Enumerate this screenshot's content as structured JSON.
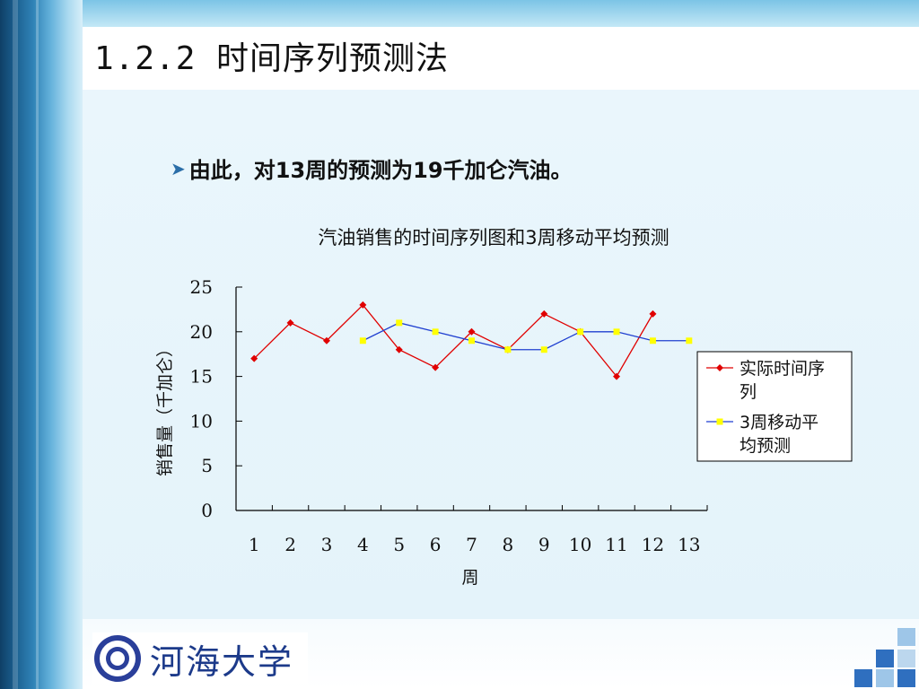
{
  "slide": {
    "title": "1.2.2 时间序列预测法",
    "bullet": "由此，对13周的预测为19千加仑汽油。",
    "logo_text": "河海大学"
  },
  "colors": {
    "actual": "#e00000",
    "forecast_line": "#1f3fd0",
    "forecast_marker": "#ffff00",
    "accent": "#2a6ea8"
  },
  "chart_data": {
    "type": "line",
    "title": "汽油销售的时间序列图和3周移动平均预测",
    "xlabel": "周",
    "ylabel": "销售量（千加仑）",
    "x": [
      1,
      2,
      3,
      4,
      5,
      6,
      7,
      8,
      9,
      10,
      11,
      12,
      13
    ],
    "xticks": [
      "1",
      "2",
      "3",
      "4",
      "5",
      "6",
      "7",
      "8",
      "9",
      "10",
      "11",
      "12",
      "13"
    ],
    "yticks": [
      "0",
      "5",
      "10",
      "15",
      "20",
      "25"
    ],
    "ylim": [
      0,
      25
    ],
    "grid": false,
    "legend_position": "right",
    "series": [
      {
        "name": "实际时间序列",
        "x": [
          1,
          2,
          3,
          4,
          5,
          6,
          7,
          8,
          9,
          10,
          11,
          12
        ],
        "values": [
          17,
          21,
          19,
          23,
          18,
          16,
          20,
          18,
          22,
          20,
          15,
          22
        ],
        "marker": "diamond",
        "color_key": "actual"
      },
      {
        "name": "3周移动平均预测",
        "x": [
          4,
          5,
          6,
          7,
          8,
          9,
          10,
          11,
          12,
          13
        ],
        "values": [
          19,
          21,
          20,
          19,
          18,
          18,
          20,
          20,
          19,
          19
        ],
        "marker": "square",
        "color_key": "forecast_line"
      }
    ]
  }
}
